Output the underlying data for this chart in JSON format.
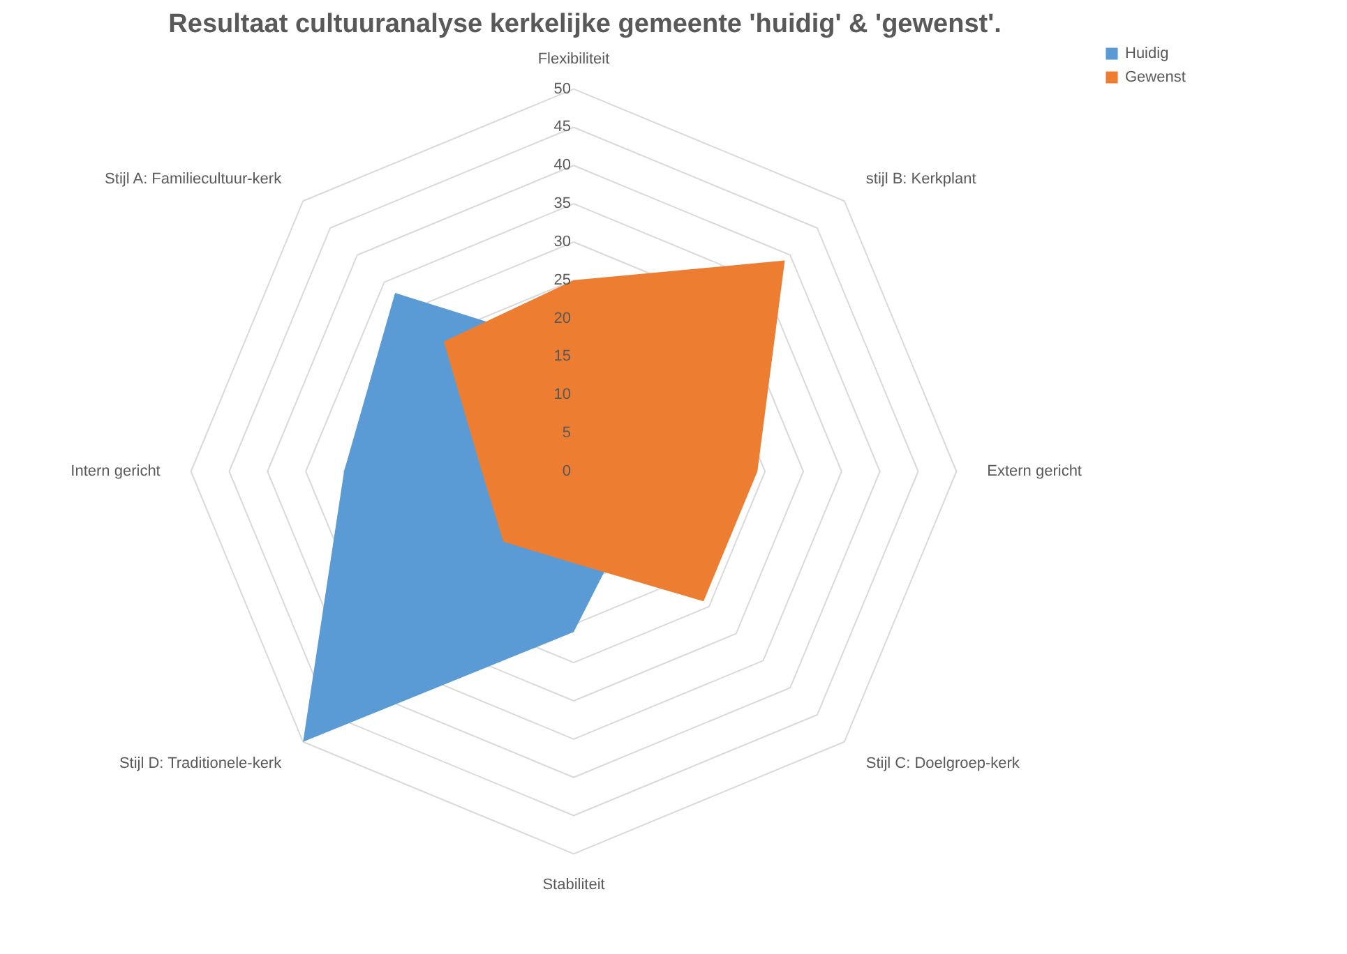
{
  "chart_data": {
    "type": "radar",
    "title": "Resultaat cultuuranalyse kerkelijke gemeente 'huidig' & 'gewenst'.",
    "categories": [
      "Flexibiliteit",
      "stijl B: Kerkplant",
      "Extern gericht",
      "Stijl C: Doelgroep-kerk",
      "Stabiliteit",
      "Stijl D: Traditionele-kerk",
      "Intern gericht",
      "Stijl A: Familiecultuur-kerk"
    ],
    "series": [
      {
        "name": "Huidig",
        "color": "#5b9bd5",
        "values": [
          16,
          null,
          null,
          10,
          21,
          50,
          30,
          33
        ]
      },
      {
        "name": "Gewenst",
        "color": "#ed7d31",
        "values": [
          25,
          39,
          24,
          24,
          12,
          13,
          12,
          24
        ]
      }
    ],
    "ylim": [
      0,
      50
    ],
    "yticks": [
      0,
      5,
      10,
      15,
      20,
      25,
      30,
      35,
      40,
      45,
      50
    ],
    "legend": "right"
  }
}
